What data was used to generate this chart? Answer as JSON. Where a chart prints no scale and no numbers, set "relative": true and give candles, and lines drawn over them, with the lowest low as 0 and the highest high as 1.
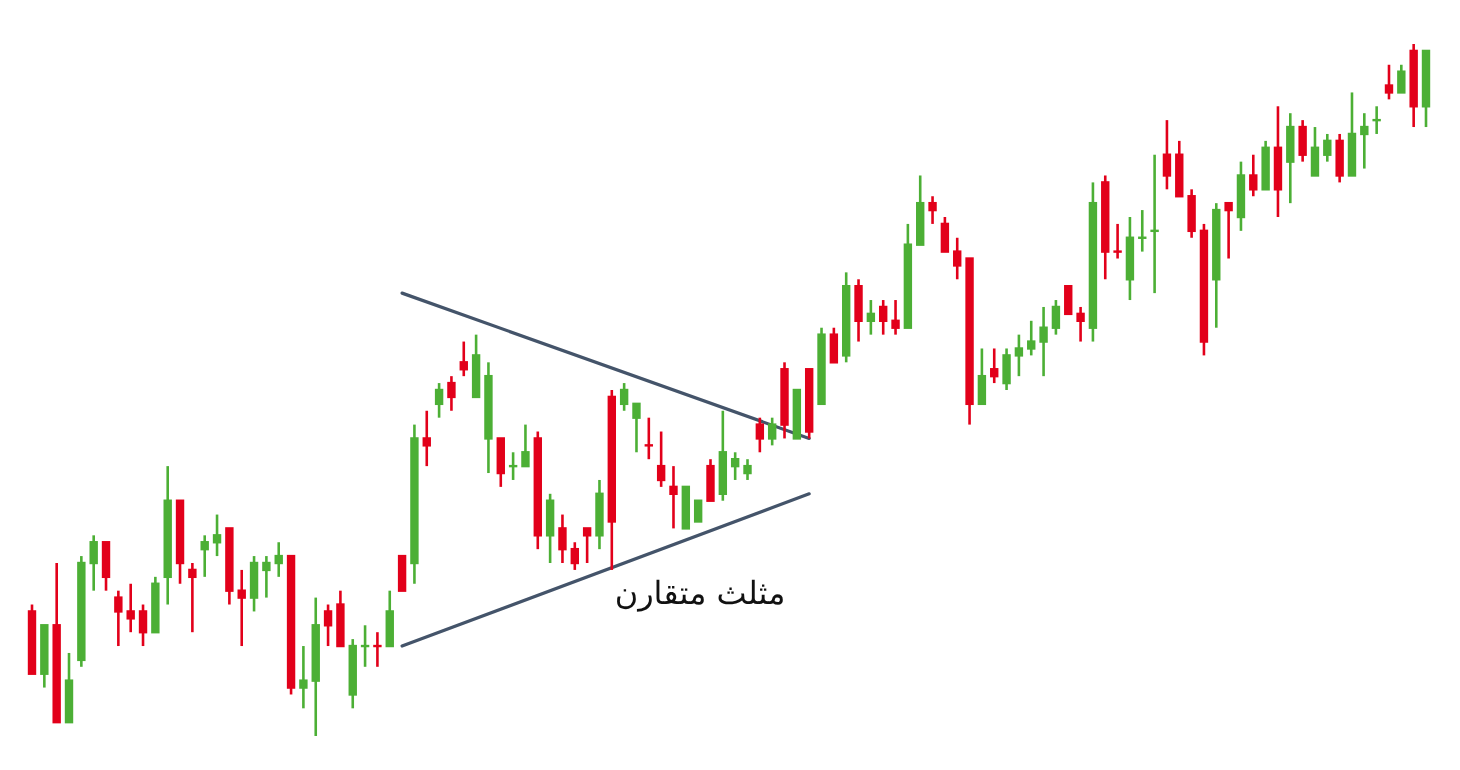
{
  "chart_data": {
    "type": "candlestick",
    "relative": true,
    "categories": [
      null,
      null,
      null,
      null,
      null,
      null,
      null,
      null,
      null,
      null,
      null,
      null,
      null,
      null,
      null,
      null,
      null,
      null,
      null,
      null,
      null,
      null,
      null,
      null,
      null,
      null,
      null,
      null,
      null,
      null,
      null,
      null,
      null,
      null,
      null,
      null,
      null,
      null,
      null,
      null,
      null,
      null,
      null,
      null,
      null,
      null,
      null,
      null,
      null,
      null,
      null,
      null,
      null,
      null,
      null,
      null,
      null,
      null,
      null,
      null,
      null,
      null,
      null,
      null,
      null,
      null,
      null,
      null,
      null,
      null,
      null,
      null,
      null,
      null,
      null,
      null,
      null,
      null,
      null,
      null,
      null,
      null,
      null,
      null,
      null,
      null,
      null,
      null,
      null,
      null,
      null,
      null,
      null,
      null,
      null,
      null,
      null,
      null,
      null,
      null,
      null,
      null,
      null,
      null,
      null,
      null,
      null,
      null,
      null,
      null,
      null,
      null,
      null,
      null
    ],
    "ohlc": [
      [
        0.18,
        0.19,
        0.09,
        0.09
      ],
      [
        0.09,
        0.16,
        0.07,
        0.16
      ],
      [
        0.16,
        0.25,
        0.02,
        0.02
      ],
      [
        0.02,
        0.12,
        0.02,
        0.08
      ],
      [
        0.11,
        0.26,
        0.1,
        0.25
      ],
      [
        0.25,
        0.29,
        0.21,
        0.28
      ],
      [
        0.28,
        0.28,
        0.21,
        0.23
      ],
      [
        0.2,
        0.21,
        0.13,
        0.18
      ],
      [
        0.18,
        0.22,
        0.15,
        0.17
      ],
      [
        0.18,
        0.19,
        0.13,
        0.15
      ],
      [
        0.15,
        0.23,
        0.15,
        0.22
      ],
      [
        0.23,
        0.39,
        0.19,
        0.34
      ],
      [
        0.34,
        0.34,
        0.22,
        0.25
      ],
      [
        0.24,
        0.25,
        0.15,
        0.23
      ],
      [
        0.27,
        0.29,
        0.23,
        0.28
      ],
      [
        0.28,
        0.32,
        0.26,
        0.29
      ],
      [
        0.3,
        0.3,
        0.19,
        0.21
      ],
      [
        0.21,
        0.24,
        0.13,
        0.2
      ],
      [
        0.2,
        0.26,
        0.18,
        0.25
      ],
      [
        0.24,
        0.26,
        0.2,
        0.25
      ],
      [
        0.25,
        0.28,
        0.23,
        0.26
      ],
      [
        0.26,
        0.26,
        0.06,
        0.07
      ],
      [
        0.07,
        0.13,
        0.04,
        0.08
      ],
      [
        0.08,
        0.2,
        0,
        0.16
      ],
      [
        0.18,
        0.19,
        0.13,
        0.16
      ],
      [
        0.19,
        0.21,
        0.13,
        0.13
      ],
      [
        0.06,
        0.14,
        0.04,
        0.13
      ],
      [
        0.13,
        0.16,
        0.1,
        0.13
      ],
      [
        0.13,
        0.15,
        0.1,
        0.13
      ],
      [
        0.13,
        0.21,
        0.13,
        0.18
      ],
      [
        0.26,
        0.26,
        0.21,
        0.21
      ],
      [
        0.25,
        0.45,
        0.22,
        0.43
      ],
      [
        0.43,
        0.47,
        0.39,
        0.42
      ],
      [
        0.48,
        0.51,
        0.46,
        0.5
      ],
      [
        0.51,
        0.52,
        0.47,
        0.49
      ],
      [
        0.54,
        0.57,
        0.52,
        0.53
      ],
      [
        0.49,
        0.58,
        0.49,
        0.55
      ],
      [
        0.43,
        0.54,
        0.38,
        0.52
      ],
      [
        0.43,
        0.43,
        0.36,
        0.38
      ],
      [
        0.39,
        0.41,
        0.37,
        0.39
      ],
      [
        0.39,
        0.45,
        0.39,
        0.41
      ],
      [
        0.43,
        0.44,
        0.27,
        0.29
      ],
      [
        0.29,
        0.35,
        0.25,
        0.34
      ],
      [
        0.3,
        0.32,
        0.25,
        0.27
      ],
      [
        0.27,
        0.28,
        0.24,
        0.25
      ],
      [
        0.3,
        0.3,
        0.25,
        0.29
      ],
      [
        0.29,
        0.37,
        0.27,
        0.35
      ],
      [
        0.49,
        0.5,
        0.24,
        0.31
      ],
      [
        0.48,
        0.51,
        0.47,
        0.5
      ],
      [
        0.46,
        0.48,
        0.41,
        0.48
      ],
      [
        0.42,
        0.46,
        0.4,
        0.42
      ],
      [
        0.39,
        0.44,
        0.36,
        0.37
      ],
      [
        0.36,
        0.39,
        0.3,
        0.35
      ],
      [
        0.3,
        0.36,
        0.3,
        0.36
      ],
      [
        0.31,
        0.34,
        0.31,
        0.34
      ],
      [
        0.39,
        0.4,
        0.34,
        0.34
      ],
      [
        0.35,
        0.47,
        0.34,
        0.41
      ],
      [
        0.39,
        0.41,
        0.37,
        0.4
      ],
      [
        0.38,
        0.4,
        0.37,
        0.39
      ],
      [
        0.45,
        0.46,
        0.41,
        0.43
      ],
      [
        0.43,
        0.46,
        0.42,
        0.45
      ],
      [
        0.53,
        0.54,
        0.43,
        0.45
      ],
      [
        0.43,
        0.5,
        0.43,
        0.5
      ],
      [
        0.53,
        0.53,
        0.43,
        0.44
      ],
      [
        0.48,
        0.59,
        0.48,
        0.58
      ],
      [
        0.58,
        0.59,
        0.54,
        0.54
      ],
      [
        0.55,
        0.67,
        0.54,
        0.65
      ],
      [
        0.65,
        0.66,
        0.57,
        0.6
      ],
      [
        0.6,
        0.63,
        0.58,
        0.61
      ],
      [
        0.62,
        0.63,
        0.58,
        0.6
      ],
      [
        0.6,
        0.63,
        0.58,
        0.59
      ],
      [
        0.59,
        0.74,
        0.59,
        0.71
      ],
      [
        0.71,
        0.81,
        0.71,
        0.77
      ],
      [
        0.77,
        0.78,
        0.74,
        0.76
      ],
      [
        0.74,
        0.75,
        0.7,
        0.7
      ],
      [
        0.7,
        0.72,
        0.66,
        0.68
      ],
      [
        0.69,
        0.69,
        0.45,
        0.48
      ],
      [
        0.48,
        0.56,
        0.48,
        0.52
      ],
      [
        0.53,
        0.56,
        0.51,
        0.52
      ],
      [
        0.51,
        0.56,
        0.5,
        0.55
      ],
      [
        0.55,
        0.58,
        0.52,
        0.56
      ],
      [
        0.56,
        0.6,
        0.55,
        0.57
      ],
      [
        0.57,
        0.62,
        0.52,
        0.59
      ],
      [
        0.59,
        0.63,
        0.58,
        0.62
      ],
      [
        0.65,
        0.65,
        0.61,
        0.61
      ],
      [
        0.61,
        0.62,
        0.57,
        0.6
      ],
      [
        0.59,
        0.8,
        0.57,
        0.77
      ],
      [
        0.8,
        0.81,
        0.66,
        0.7
      ],
      [
        0.7,
        0.74,
        0.69,
        0.7
      ],
      [
        0.66,
        0.75,
        0.63,
        0.72
      ],
      [
        0.72,
        0.76,
        0.7,
        0.72
      ],
      [
        0.73,
        0.84,
        0.64,
        0.73
      ],
      [
        0.84,
        0.89,
        0.79,
        0.81
      ],
      [
        0.84,
        0.86,
        0.78,
        0.78
      ],
      [
        0.78,
        0.79,
        0.72,
        0.73
      ],
      [
        0.73,
        0.74,
        0.55,
        0.57
      ],
      [
        0.66,
        0.77,
        0.59,
        0.76
      ],
      [
        0.77,
        0.77,
        0.69,
        0.76
      ],
      [
        0.75,
        0.83,
        0.73,
        0.81
      ],
      [
        0.81,
        0.84,
        0.78,
        0.79
      ],
      [
        0.79,
        0.86,
        0.79,
        0.85
      ],
      [
        0.85,
        0.91,
        0.75,
        0.79
      ],
      [
        0.83,
        0.9,
        0.77,
        0.88
      ],
      [
        0.88,
        0.89,
        0.83,
        0.84
      ],
      [
        0.81,
        0.88,
        0.81,
        0.85
      ],
      [
        0.84,
        0.87,
        0.83,
        0.86
      ],
      [
        0.86,
        0.87,
        0.8,
        0.81
      ],
      [
        0.81,
        0.93,
        0.81,
        0.87
      ],
      [
        0.87,
        0.9,
        0.82,
        0.88
      ],
      [
        0.89,
        0.91,
        0.87,
        0.89
      ],
      [
        0.94,
        0.97,
        0.92,
        0.93
      ],
      [
        0.93,
        0.97,
        0.93,
        0.96
      ],
      [
        0.99,
        1,
        0.88,
        0.91
      ],
      [
        0.91,
        0.99,
        0.88,
        0.99
      ]
    ],
    "colors": [
      "#e2001a",
      "#4caf35",
      "#e2001a",
      "#4caf35",
      "#4caf35",
      "#4caf35",
      "#e2001a",
      "#e2001a",
      "#e2001a",
      "#e2001a",
      "#4caf35",
      "#4caf35",
      "#e2001a",
      "#e2001a",
      "#4caf35",
      "#4caf35",
      "#e2001a",
      "#e2001a",
      "#4caf35",
      "#4caf35",
      "#4caf35",
      "#e2001a",
      "#4caf35",
      "#4caf35",
      "#e2001a",
      "#e2001a",
      "#4caf35",
      "#4caf35",
      "#e2001a",
      "#4caf35",
      "#e2001a",
      "#4caf35",
      "#e2001a",
      "#4caf35",
      "#e2001a",
      "#e2001a",
      "#4caf35",
      "#4caf35",
      "#e2001a",
      "#4caf35",
      "#4caf35",
      "#e2001a",
      "#4caf35",
      "#e2001a",
      "#e2001a",
      "#e2001a",
      "#4caf35",
      "#e2001a",
      "#4caf35",
      "#4caf35",
      "#e2001a",
      "#e2001a",
      "#e2001a",
      "#4caf35",
      "#4caf35",
      "#e2001a",
      "#4caf35",
      "#4caf35",
      "#4caf35",
      "#e2001a",
      "#4caf35",
      "#e2001a",
      "#4caf35",
      "#e2001a",
      "#4caf35",
      "#e2001a",
      "#4caf35",
      "#e2001a",
      "#4caf35",
      "#e2001a",
      "#e2001a",
      "#4caf35",
      "#4caf35",
      "#e2001a",
      "#e2001a",
      "#e2001a",
      "#e2001a",
      "#4caf35",
      "#e2001a",
      "#4caf35",
      "#4caf35",
      "#4caf35",
      "#4caf35",
      "#4caf35",
      "#e2001a",
      "#e2001a",
      "#4caf35",
      "#e2001a",
      "#e2001a",
      "#4caf35",
      "#4caf35",
      "#4caf35",
      "#e2001a",
      "#e2001a",
      "#e2001a",
      "#e2001a",
      "#4caf35",
      "#e2001a",
      "#4caf35",
      "#e2001a",
      "#4caf35",
      "#e2001a",
      "#4caf35",
      "#e2001a",
      "#4caf35",
      "#4caf35",
      "#e2001a",
      "#4caf35",
      "#4caf35",
      "#4caf35",
      "#e2001a",
      "#4caf35",
      "#e2001a",
      "#4caf35"
    ],
    "series": [
      {
        "type": "line",
        "color": "#44546a",
        "values": [
          null,
          null,
          null,
          null,
          null,
          null,
          null,
          null,
          null,
          null,
          null,
          null,
          null,
          null,
          null,
          null,
          null,
          null,
          null,
          null,
          null,
          null,
          null,
          null,
          null,
          null,
          null,
          null,
          null,
          null,
          0.64,
          null,
          null,
          null,
          null,
          null,
          null,
          null,
          null,
          null,
          null,
          null,
          null,
          null,
          null,
          null,
          null,
          null,
          null,
          null,
          null,
          null,
          null,
          null,
          null,
          null,
          null,
          null,
          null,
          null,
          null,
          null,
          null,
          0.43,
          null,
          null,
          null,
          null,
          null,
          null,
          null,
          null,
          null,
          null,
          null,
          null,
          null,
          null,
          null,
          null,
          null,
          null,
          null,
          null,
          null,
          null,
          null,
          null,
          null,
          null,
          null,
          null,
          null,
          null,
          null,
          null,
          null,
          null,
          null,
          null,
          null,
          null,
          null,
          null,
          null,
          null,
          null,
          null,
          null,
          null,
          null,
          null,
          null,
          null
        ]
      },
      {
        "type": "line",
        "color": "#44546a",
        "values": [
          null,
          null,
          null,
          null,
          null,
          null,
          null,
          null,
          null,
          null,
          null,
          null,
          null,
          null,
          null,
          null,
          null,
          null,
          null,
          null,
          null,
          null,
          null,
          null,
          null,
          null,
          null,
          null,
          null,
          null,
          0.13,
          null,
          null,
          null,
          null,
          null,
          null,
          null,
          null,
          null,
          null,
          null,
          null,
          null,
          null,
          null,
          null,
          null,
          null,
          null,
          null,
          null,
          null,
          null,
          null,
          null,
          null,
          null,
          null,
          null,
          null,
          null,
          null,
          0.35,
          null,
          null,
          null,
          null,
          null,
          null,
          null,
          null,
          null,
          null,
          null,
          null,
          null,
          null,
          null,
          null,
          null,
          null,
          null,
          null,
          null,
          null,
          null,
          null,
          null,
          null,
          null,
          null,
          null,
          null,
          null,
          null,
          null,
          null,
          null,
          null,
          null,
          null,
          null,
          null,
          null,
          null,
          null,
          null,
          null,
          null,
          null,
          null,
          null,
          null
        ]
      }
    ],
    "annotations": [
      "مثلث متقارن"
    ]
  }
}
